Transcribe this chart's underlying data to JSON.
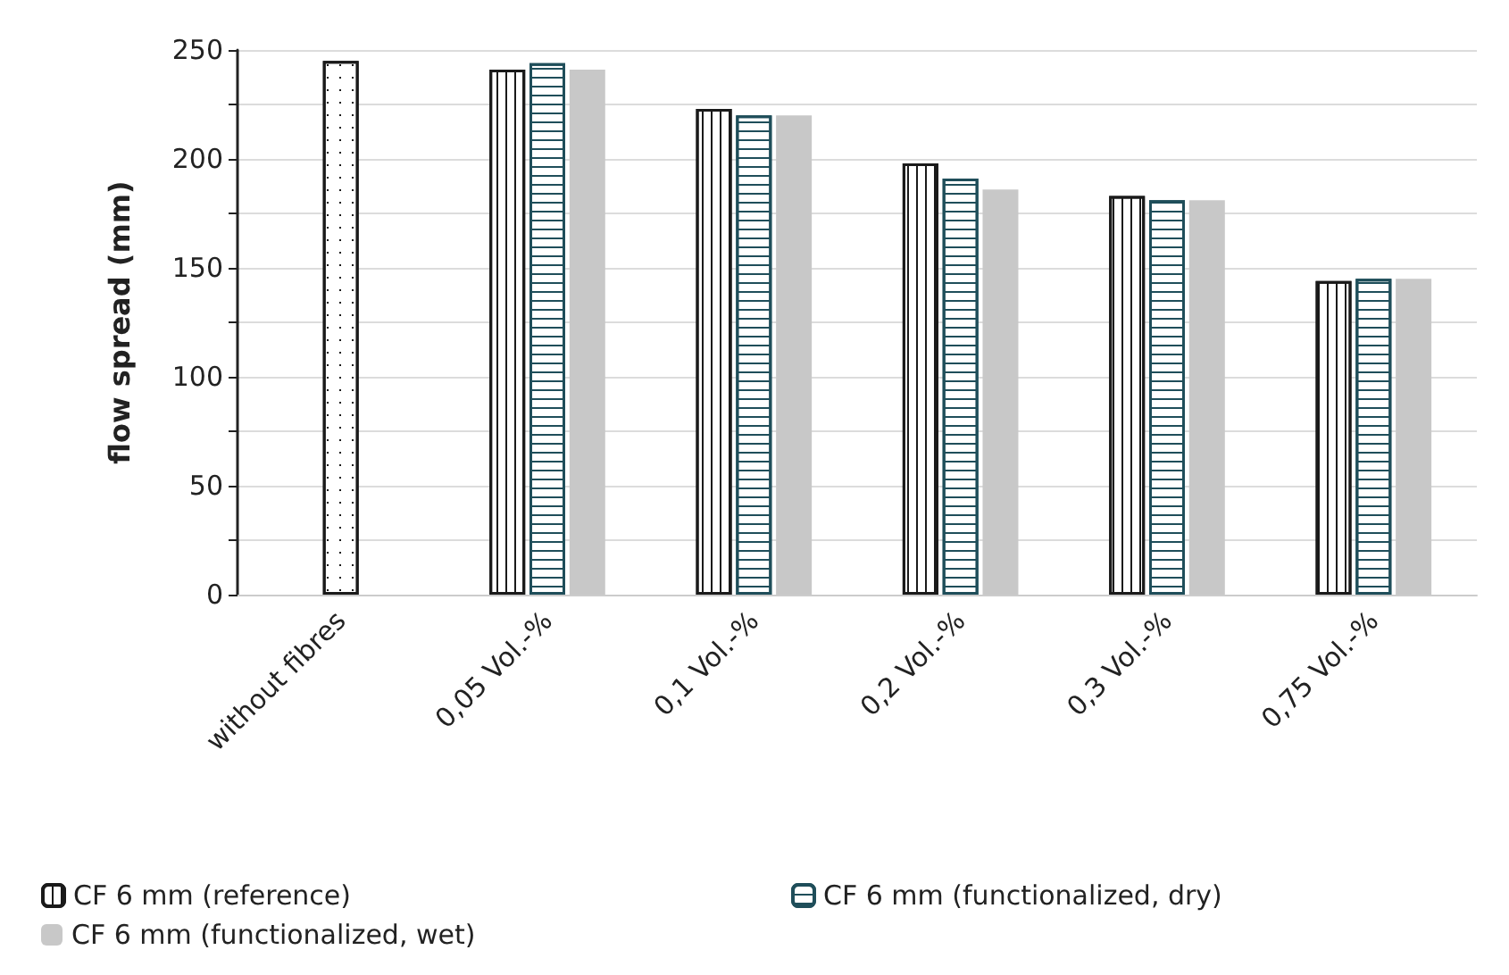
{
  "chart_data": {
    "type": "bar",
    "ylabel": "flow spread (mm)",
    "categories": [
      "without fibres",
      "0,05 Vol.-%",
      "0,1 Vol.-%",
      "0,2 Vol.-%",
      "0,3 Vol.-%",
      "0,75 Vol.-%"
    ],
    "series": [
      {
        "name": "CF 6 mm (reference)",
        "color": "#1a1a1a",
        "values": [
          null,
          241,
          223,
          198,
          183,
          144
        ]
      },
      {
        "name": "CF 6 mm (functionalized, dry)",
        "color": "#1f4e5a",
        "values": [
          null,
          244,
          220,
          191,
          181,
          145
        ]
      },
      {
        "name": "CF 6 mm (functionalized, wet)",
        "color": "#c8c8c8",
        "values": [
          null,
          241,
          220,
          186,
          181,
          145
        ]
      },
      {
        "color": "#1a1a1a",
        "values": [
          245,
          null,
          null,
          null,
          null,
          null
        ]
      }
    ],
    "ylim": [
      0,
      250
    ],
    "yticks": [
      0,
      {
        "value": 25,
        "label": null
      },
      50,
      {
        "value": 75,
        "label": null
      },
      100,
      {
        "value": 125,
        "label": null
      },
      150,
      {
        "value": 175,
        "label": null
      },
      200,
      {
        "value": 225,
        "label": null
      },
      250
    ],
    "grid": "y",
    "legend": "bottom"
  }
}
